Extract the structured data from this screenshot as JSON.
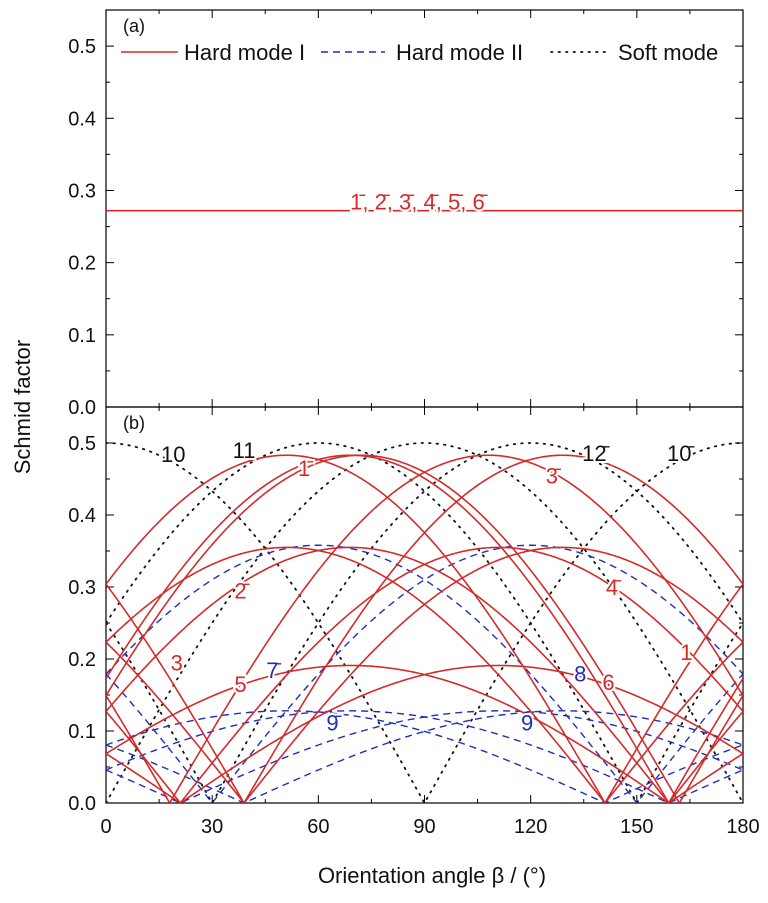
{
  "chart_data": {
    "type": "line",
    "ylabel": "Schmid factor",
    "xlabel": "Orientation angle β / (°)",
    "xlim": [
      0,
      180
    ],
    "x_ticks": [
      "0",
      "30",
      "60",
      "90",
      "120",
      "150",
      "180"
    ],
    "y_ticks": [
      "0.0",
      "0.1",
      "0.2",
      "0.3",
      "0.4",
      "0.5"
    ],
    "grid": false,
    "colors": {
      "hard1": "#d42a2a",
      "hard2": "#1f2fb8",
      "soft": "#111111"
    },
    "panels": [
      {
        "label": "(a)",
        "ylim": [
          0,
          0.55
        ],
        "legend": {
          "placement": "top",
          "entries": [
            {
              "name": "Hard mode I",
              "style": "solid",
              "color": "#d42a2a"
            },
            {
              "name": "Hard mode II",
              "style": "dashed",
              "color": "#1f2fb8"
            },
            {
              "name": "Soft mode",
              "style": "dotted",
              "color": "#111111"
            }
          ]
        },
        "series": [
          {
            "mode": "Hard mode I",
            "label": "1̄, 2̄, 3̄, 4̄, 5̄, 6̄",
            "value": 0.272
          }
        ],
        "annotations": [
          {
            "text": "1̄, 2̄, 3̄, 4̄, 5̄, 6̄",
            "x": 88,
            "y": 0.285,
            "color": "#d42a2a"
          }
        ]
      },
      {
        "label": "(b)",
        "ylim": [
          0,
          0.55
        ],
        "series": [
          {
            "mode": "Hard mode I",
            "label": "1̄",
            "formula": "abs_sin",
            "amp": 0.483,
            "zero": -18
          },
          {
            "mode": "Hard mode I",
            "label": "3̄",
            "formula": "abs_sin",
            "amp": 0.483,
            "zero": 18
          },
          {
            "mode": "Hard mode I",
            "label": "1",
            "formula": "abs_sin",
            "amp": 0.483,
            "zero": 141
          },
          {
            "mode": "Hard mode I",
            "label": "2̄",
            "formula": "abs_sin",
            "amp": 0.483,
            "zero": 39
          },
          {
            "mode": "Hard mode I",
            "label": "4̄",
            "formula": "abs_sin",
            "amp": 0.483,
            "zero": 159
          },
          {
            "mode": "Hard mode I",
            "label": "3",
            "formula": "abs_sin",
            "amp": 0.355,
            "zero": 21
          },
          {
            "mode": "Hard mode I",
            "label": "5",
            "formula": "abs_sin",
            "amp": 0.355,
            "zero": 39
          },
          {
            "mode": "Hard mode I",
            "label": "6",
            "formula": "abs_sin",
            "amp": 0.355,
            "zero": 141
          },
          {
            "mode": "Hard mode I",
            "label": "",
            "formula": "abs_sin",
            "amp": 0.355,
            "zero": 159
          },
          {
            "mode": "Hard mode I",
            "label": "",
            "formula": "abs_sin",
            "amp": 0.191,
            "zero": -21
          },
          {
            "mode": "Hard mode I",
            "label": "",
            "formula": "abs_sin",
            "amp": 0.191,
            "zero": 21
          },
          {
            "mode": "Hard mode II",
            "label": "7̄",
            "formula": "abs_sin",
            "amp": 0.358,
            "zero": 30
          },
          {
            "mode": "Hard mode II",
            "label": "8",
            "formula": "abs_sin",
            "amp": 0.358,
            "zero": 150
          },
          {
            "mode": "Hard mode II",
            "label": "9̄",
            "formula": "abs_sin",
            "amp": 0.128,
            "zero": 21
          },
          {
            "mode": "Hard mode II",
            "label": "9",
            "formula": "abs_sin",
            "amp": 0.128,
            "zero": 159
          },
          {
            "mode": "Hard mode II",
            "label": "",
            "formula": "abs_sin",
            "amp": 0.128,
            "zero": 39
          },
          {
            "mode": "Hard mode II",
            "label": "",
            "formula": "abs_sin",
            "amp": 0.128,
            "zero": 141
          },
          {
            "mode": "Soft mode",
            "label": "10",
            "formula": "abs_cos",
            "amp": 0.5,
            "zero": 90
          },
          {
            "mode": "Soft mode",
            "label": "11",
            "formula": "abs_sin",
            "amp": 0.5,
            "zero": 30
          },
          {
            "mode": "Soft mode",
            "label": "12̄",
            "formula": "abs_sin",
            "amp": 0.5,
            "zero": 150
          },
          {
            "mode": "Soft mode",
            "label": "10̄",
            "formula": "abs_sin",
            "amp": 0.5,
            "zero": 90
          }
        ],
        "annotations": [
          {
            "text": "10",
            "x": 19,
            "y": 0.485,
            "color": "#111111"
          },
          {
            "text": "11",
            "x": 39,
            "y": 0.49,
            "color": "#111111"
          },
          {
            "text": "1̄",
            "x": 56,
            "y": 0.465,
            "color": "#d42a2a"
          },
          {
            "text": "3̄",
            "x": 126,
            "y": 0.455,
            "color": "#d42a2a"
          },
          {
            "text": "12̄",
            "x": 138,
            "y": 0.486,
            "color": "#111111"
          },
          {
            "text": "10̄",
            "x": 162,
            "y": 0.486,
            "color": "#111111"
          },
          {
            "text": "2̄",
            "x": 38,
            "y": 0.295,
            "color": "#d42a2a"
          },
          {
            "text": "4̄",
            "x": 143,
            "y": 0.3,
            "color": "#d42a2a"
          },
          {
            "text": "3",
            "x": 20,
            "y": 0.195,
            "color": "#d42a2a"
          },
          {
            "text": "5",
            "x": 38,
            "y": 0.165,
            "color": "#d42a2a"
          },
          {
            "text": "7̄",
            "x": 47,
            "y": 0.185,
            "color": "#1f2fb8"
          },
          {
            "text": "9̄",
            "x": 64,
            "y": 0.112,
            "color": "#1f2fb8"
          },
          {
            "text": "9",
            "x": 119,
            "y": 0.112,
            "color": "#1f2fb8"
          },
          {
            "text": "8",
            "x": 134,
            "y": 0.18,
            "color": "#1f2fb8"
          },
          {
            "text": "6",
            "x": 142,
            "y": 0.168,
            "color": "#d42a2a"
          },
          {
            "text": "1",
            "x": 164,
            "y": 0.21,
            "color": "#d42a2a"
          }
        ]
      }
    ]
  }
}
